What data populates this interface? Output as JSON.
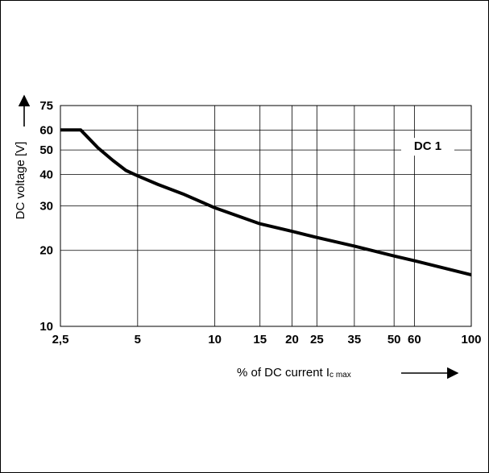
{
  "chart_data": {
    "type": "line",
    "x_scale": "log",
    "y_scale": "log",
    "xlim": [
      2.5,
      100
    ],
    "ylim": [
      10,
      75
    ],
    "x_ticks": [
      {
        "value": 2.5,
        "label": "2,5"
      },
      {
        "value": 5,
        "label": "5"
      },
      {
        "value": 10,
        "label": "10"
      },
      {
        "value": 15,
        "label": "15"
      },
      {
        "value": 20,
        "label": "20"
      },
      {
        "value": 25,
        "label": "25"
      },
      {
        "value": 35,
        "label": "35"
      },
      {
        "value": 50,
        "label": "50"
      },
      {
        "value": 60,
        "label": "60"
      },
      {
        "value": 100,
        "label": "100"
      }
    ],
    "y_ticks": [
      {
        "value": 10,
        "label": "10"
      },
      {
        "value": 20,
        "label": "20"
      },
      {
        "value": 30,
        "label": "30"
      },
      {
        "value": 40,
        "label": "40"
      },
      {
        "value": 50,
        "label": "50"
      },
      {
        "value": 60,
        "label": "60"
      },
      {
        "value": 75,
        "label": "75"
      }
    ],
    "ylabel": "DC voltage [V]",
    "xlabel": {
      "main": "% of DC current I",
      "subscript": "c max"
    },
    "grid": true,
    "series": [
      {
        "name": "DC 1",
        "x": [
          2.5,
          3.0,
          3.5,
          4.0,
          4.5,
          5.0,
          6.0,
          7.5,
          10,
          15,
          20,
          25,
          35,
          50,
          60,
          100
        ],
        "y": [
          60,
          60,
          51,
          45.5,
          41.5,
          39.5,
          36.5,
          33.5,
          29.5,
          25.5,
          23.8,
          22.5,
          20.8,
          19.0,
          18.2,
          16.0
        ]
      }
    ]
  }
}
